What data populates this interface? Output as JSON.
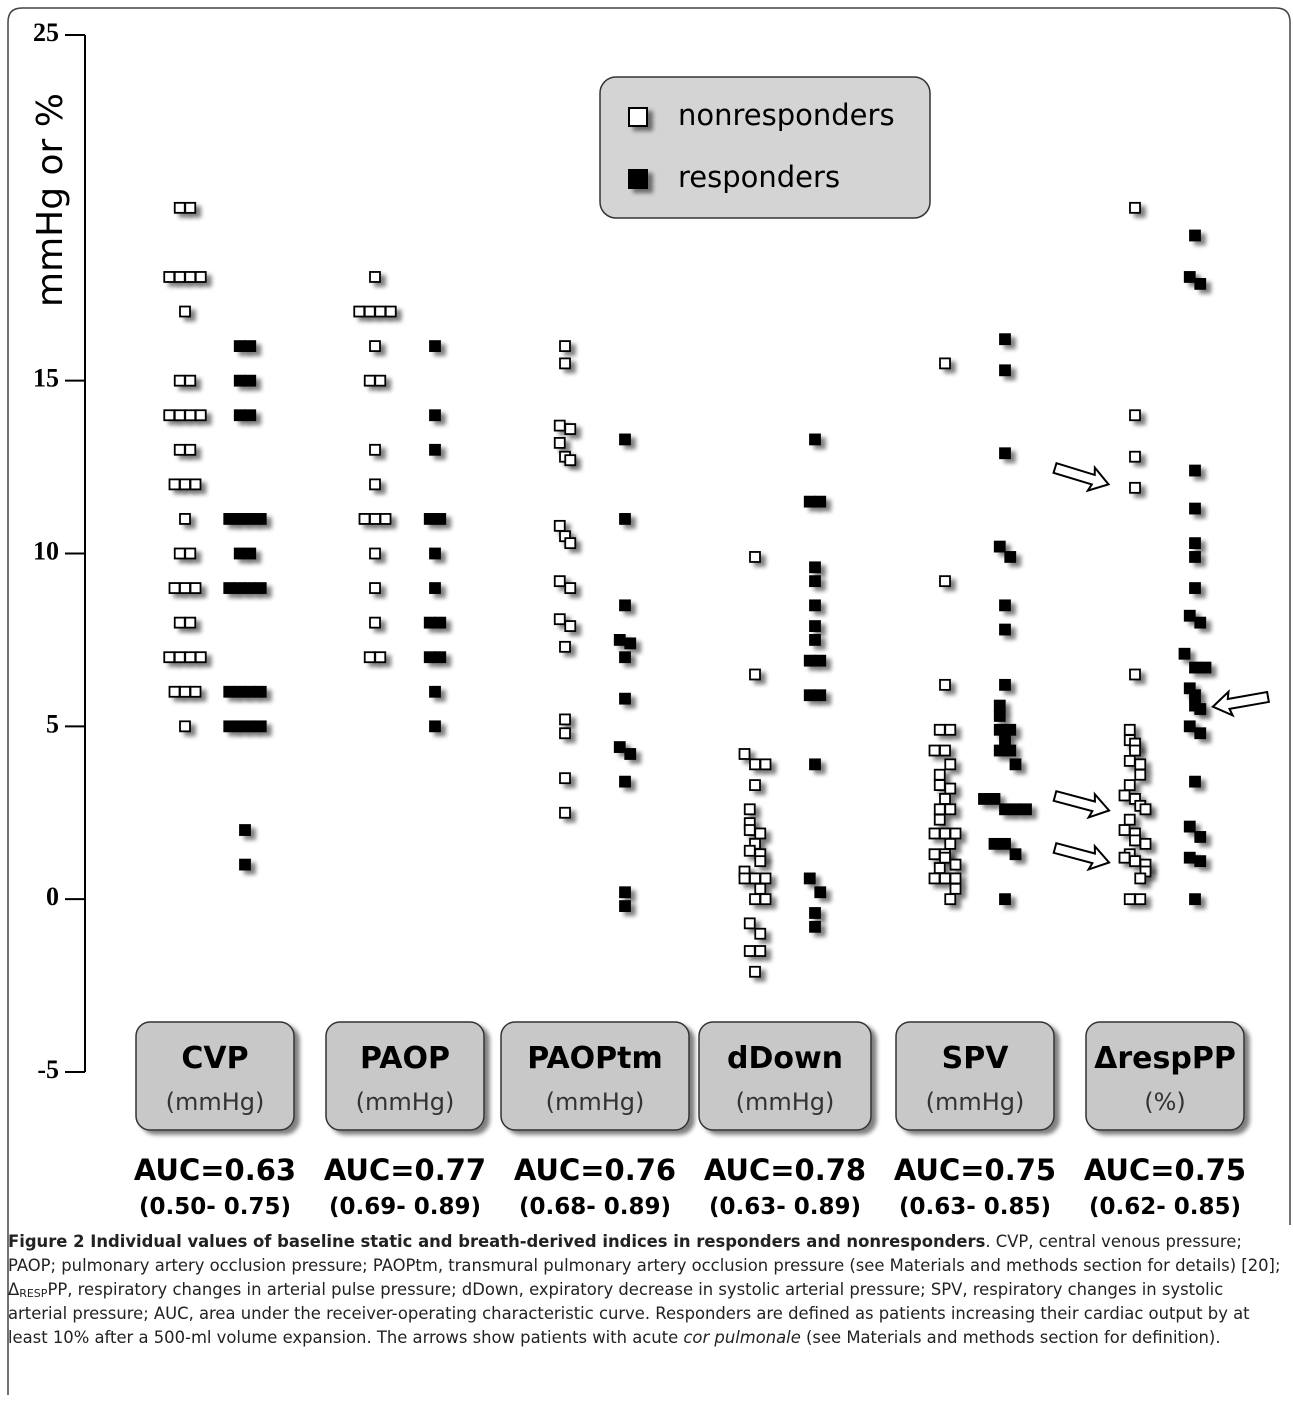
{
  "chart_data": {
    "type": "strip",
    "ylabel": "mmHg or %",
    "ylim": [
      -5,
      25
    ],
    "yticks": [
      -5,
      0,
      5,
      10,
      15,
      25
    ],
    "legend": "top",
    "categories": [
      "CVP",
      "PAOP",
      "PAOPtm",
      "dDown",
      "SPV",
      "ΔrespPP"
    ],
    "category_units": [
      "(mmHg)",
      "(mmHg)",
      "(mmHg)",
      "(mmHg)",
      "(mmHg)",
      "(%)"
    ],
    "auc_labels": [
      "AUC=0.63",
      "AUC=0.77",
      "AUC=0.76",
      "AUC=0.78",
      "AUC=0.75",
      "AUC=0.75"
    ],
    "ci_labels": [
      "(0.50- 0.75)",
      "(0.69- 0.89)",
      "(0.68- 0.89)",
      "(0.63- 0.89)",
      "(0.63- 0.85)",
      "(0.62- 0.85)"
    ],
    "series": [
      {
        "name": "nonresponders",
        "color": "#ffffff",
        "values": [
          [
            20,
            20,
            18,
            18,
            18,
            18,
            17,
            15,
            15,
            14,
            14,
            14,
            14,
            13,
            13,
            12,
            12,
            12,
            11,
            10,
            10,
            9,
            9,
            9,
            8,
            8,
            7,
            7,
            7,
            7,
            6,
            6,
            6,
            5
          ],
          [
            18,
            17,
            17,
            17,
            17,
            16,
            15,
            15,
            13,
            12,
            11,
            11,
            11,
            10,
            9,
            8,
            7,
            7
          ],
          [
            16.0,
            15.5,
            13.7,
            13.6,
            13.2,
            12.8,
            12.7,
            10.8,
            10.5,
            10.3,
            9.2,
            9.0,
            8.1,
            7.9,
            7.3,
            5.2,
            4.8,
            3.5,
            2.5
          ],
          [
            9.9,
            6.5,
            4.2,
            3.9,
            3.9,
            3.3,
            2.6,
            2.2,
            2.0,
            1.9,
            1.6,
            1.4,
            1.3,
            1.1,
            0.8,
            0.6,
            0.6,
            0.6,
            0.3,
            0,
            0,
            -0.7,
            -1.0,
            -1.5,
            -1.5,
            -2.1
          ],
          [
            15.5,
            9.2,
            6.2,
            4.9,
            4.9,
            4.3,
            4.3,
            3.9,
            3.6,
            3.3,
            3.2,
            2.9,
            2.6,
            2.6,
            2.3,
            1.9,
            1.9,
            1.9,
            1.6,
            1.3,
            1.3,
            1.2,
            1.0,
            0.9,
            0.6,
            0.6,
            0.6,
            0.3,
            0
          ],
          [
            20.0,
            14.0,
            12.8,
            11.9,
            6.5,
            4.9,
            4.6,
            4.5,
            4.3,
            4.0,
            3.9,
            3.6,
            3.3,
            3.0,
            2.9,
            2.7,
            2.6,
            2.3,
            2.0,
            1.9,
            1.7,
            1.6,
            1.3,
            1.2,
            1.1,
            1.0,
            0.8,
            0.6,
            0,
            0
          ]
        ]
      },
      {
        "name": "responders",
        "color": "#000000",
        "values": [
          [
            16,
            16,
            15,
            15,
            14,
            14,
            11,
            11,
            11,
            11,
            10,
            10,
            9,
            9,
            9,
            9,
            6,
            6,
            6,
            6,
            5,
            5,
            5,
            5,
            2,
            1
          ],
          [
            16,
            14,
            13,
            11,
            11,
            10,
            9,
            8,
            8,
            7,
            7,
            6,
            5
          ],
          [
            13.3,
            11.0,
            8.5,
            7.5,
            7.4,
            7.0,
            5.8,
            4.4,
            4.2,
            3.4,
            0.2,
            -0.2
          ],
          [
            13.3,
            11.5,
            11.5,
            9.6,
            9.2,
            8.5,
            7.9,
            7.5,
            6.9,
            6.9,
            5.9,
            5.9,
            3.9,
            0.6,
            0.2,
            -0.4,
            -0.8
          ],
          [
            16.2,
            15.3,
            12.9,
            10.2,
            9.9,
            8.5,
            7.8,
            6.2,
            5.6,
            5.3,
            4.9,
            4.9,
            4.6,
            4.3,
            4.3,
            3.9,
            2.9,
            2.9,
            2.6,
            2.6,
            2.6,
            1.6,
            1.6,
            1.3,
            0
          ],
          [
            19.2,
            18.0,
            17.8,
            12.4,
            11.3,
            10.3,
            9.9,
            9.0,
            8.2,
            8.0,
            7.1,
            6.7,
            6.7,
            6.1,
            5.9,
            5.6,
            5.5,
            5.0,
            4.8,
            3.4,
            2.1,
            1.8,
            1.2,
            1.1,
            0
          ]
        ]
      }
    ]
  },
  "caption": {
    "parts": [
      "Figure 2 Individual values of baseline static and breath-derived indices in responders and nonresponders",
      ". CVP, central venous pressure; PAOP; pulmonary artery occlusion pressure; PAOPtm, transmural pulmonary artery occlusion pressure (see Materials and methods section for details) [20]; Δ",
      "RESP",
      "PP, respiratory changes in arterial pulse pressure; dDown, expiratory decrease in systolic arterial pressure; SPV, respiratory changes in systolic arterial pressure; AUC, area under the receiver-operating characteristic curve. Responders are defined as patients increasing their cardiac output by at least 10% after a 500-ml volume expansion. The arrows show patients with acute ",
      "cor pulmonale",
      " (see Materials and methods section for definition)."
    ]
  }
}
